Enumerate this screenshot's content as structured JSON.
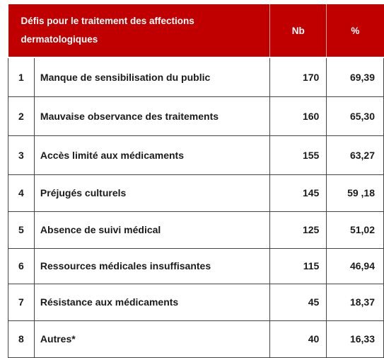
{
  "table": {
    "headers": {
      "defis": "Défis pour le traitement des affections dermatologiques",
      "nb": "Nb",
      "pct": "%"
    },
    "rows": [
      {
        "num": "1",
        "label": "Manque de sensibilisation du public",
        "nb": "170",
        "pct": "69,39"
      },
      {
        "num": "2",
        "label": "Mauvaise observance des traitements",
        "nb": "160",
        "pct": "65,30"
      },
      {
        "num": "3",
        "label": "Accès limité aux médicaments",
        "nb": "155",
        "pct": "63,27"
      },
      {
        "num": "4",
        "label": "Préjugés culturels",
        "nb": "145",
        "pct": "59 ,18"
      },
      {
        "num": "5",
        "label": "Absence de suivi médical",
        "nb": "125",
        "pct": "51,02"
      },
      {
        "num": "6",
        "label": "Ressources médicales insuffisantes",
        "nb": "115",
        "pct": "46,94"
      },
      {
        "num": "7",
        "label": "Résistance aux médicaments",
        "nb": "45",
        "pct": "18,37"
      },
      {
        "num": "8",
        "label": "Autres*",
        "nb": "40",
        "pct": "16,33"
      }
    ]
  },
  "colors": {
    "header_bg": "#c00000",
    "header_text": "#ffffff",
    "border": "#444444"
  }
}
